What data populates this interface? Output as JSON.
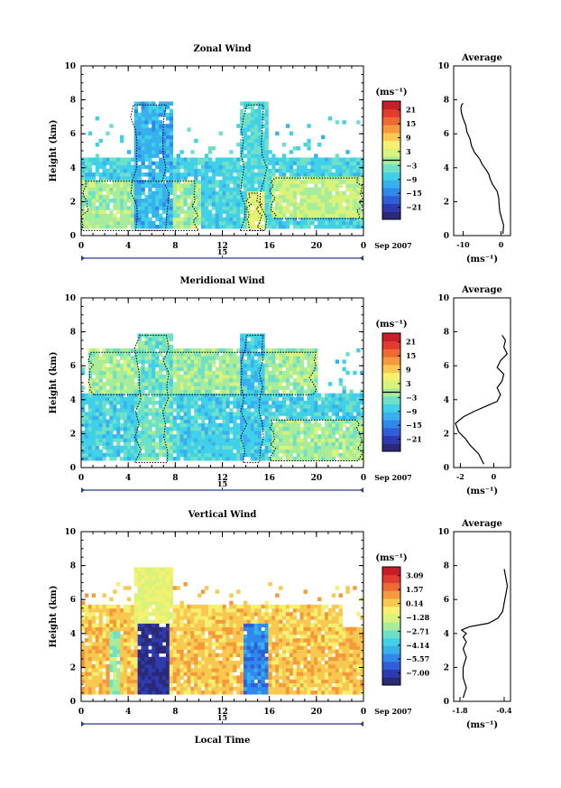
{
  "figure": {
    "colors": {
      "colorbar": [
        "#2a2a78",
        "#2e3bb0",
        "#2f5fd8",
        "#2f88ea",
        "#38b0ee",
        "#40d0e8",
        "#6fe0c8",
        "#a6ec9a",
        "#d8f27a",
        "#f6f070",
        "#f8c850",
        "#f49a3a",
        "#ee6a34",
        "#e23c30",
        "#c81e28"
      ],
      "contour": "#000000",
      "profile_line": "#000000",
      "time_marker": "#2a3a8a"
    },
    "x_axis": {
      "ticks": [
        "0",
        "4",
        "8",
        "12",
        "16",
        "20",
        "0"
      ],
      "day_label": "15",
      "date_label": "Sep 2007",
      "xlabel": "Local Time",
      "xlim_hours": [
        0,
        24
      ]
    }
  },
  "chart_data": [
    {
      "type": "heatmap",
      "title": "Zonal Wind",
      "ylabel": "Height (km)",
      "ylim": [
        0,
        10
      ],
      "yticks": [
        "0",
        "2",
        "4",
        "6",
        "8",
        "10"
      ],
      "units": "(ms⁻¹)",
      "colorbar_ticks": [
        "21",
        "15",
        "9",
        "3",
        "−3",
        "−9",
        "−15",
        "−21"
      ],
      "colorbar_range": [
        -24,
        24
      ],
      "contour_levels": [
        -3
      ],
      "features": [
        {
          "t_start": 0,
          "t_end": 24,
          "z_base": 0.4,
          "z_top": 4.6,
          "value": -6
        },
        {
          "t_start": 0,
          "t_end": 10,
          "z_base": 0.3,
          "z_top": 3.2,
          "value": 0
        },
        {
          "t_start": 4.2,
          "t_end": 7.5,
          "z_base": 0.3,
          "z_top": 7.7,
          "value": -9
        },
        {
          "t_start": 13.5,
          "t_end": 15.8,
          "z_base": 0.3,
          "z_top": 7.7,
          "value": -5
        },
        {
          "t_start": 14.0,
          "t_end": 15.5,
          "z_base": 0.3,
          "z_top": 2.5,
          "value": 5
        },
        {
          "t_start": 16,
          "t_end": 24,
          "z_base": 1.0,
          "z_top": 3.4,
          "value": 2
        }
      ]
    },
    {
      "type": "line",
      "title": "Average",
      "xlabel": "(ms⁻¹)",
      "xticks": [
        "-10",
        "0"
      ],
      "xlim": [
        -12.5,
        2.5
      ],
      "ylim": [
        0,
        10
      ],
      "yticks": [
        "0",
        "2",
        "4",
        "6",
        "8",
        "10"
      ],
      "x": [
        0.5,
        0.7,
        0.2,
        -0.3,
        -0.5,
        -0.6,
        -1.0,
        -2.2,
        -2.8,
        -3.2,
        -4.0,
        -5.0,
        -5.6,
        -7.0,
        -7.8,
        -8.2,
        -9.0,
        -9.3,
        -10.0,
        -10.4,
        -10.6,
        -10.4,
        -10.0
      ],
      "y": [
        0.1,
        0.6,
        1.0,
        1.4,
        1.8,
        2.2,
        2.6,
        3.0,
        3.3,
        3.6,
        3.9,
        4.2,
        4.5,
        4.9,
        5.3,
        5.7,
        6.1,
        6.5,
        6.9,
        7.2,
        7.5,
        7.7,
        7.8
      ]
    },
    {
      "type": "heatmap",
      "title": "Meridional Wind",
      "ylabel": "Height (km)",
      "ylim": [
        0,
        10
      ],
      "yticks": [
        "0",
        "2",
        "4",
        "6",
        "8",
        "10"
      ],
      "units": "(ms⁻¹)",
      "colorbar_ticks": [
        "21",
        "15",
        "9",
        "3",
        "−3",
        "−9",
        "−15",
        "−21"
      ],
      "colorbar_range": [
        -24,
        24
      ],
      "contour_levels": [
        -3
      ],
      "features": [
        {
          "t_start": 0,
          "t_end": 24,
          "z_base": 0.4,
          "z_top": 4.3,
          "value": -6
        },
        {
          "t_start": 0.5,
          "t_end": 20,
          "z_base": 4.3,
          "z_top": 6.8,
          "value": 0
        },
        {
          "t_start": 4.5,
          "t_end": 7.5,
          "z_base": 0.3,
          "z_top": 7.8,
          "value": -3
        },
        {
          "t_start": 13.5,
          "t_end": 15.5,
          "z_base": 0.3,
          "z_top": 7.8,
          "value": -7
        },
        {
          "t_start": 16,
          "t_end": 24,
          "z_base": 0.4,
          "z_top": 2.8,
          "value": 0
        }
      ]
    },
    {
      "type": "line",
      "title": "Average",
      "xlabel": "(ms⁻¹)",
      "xticks": [
        "-2",
        "0"
      ],
      "xlim": [
        -2.4,
        1.0
      ],
      "ylim": [
        0,
        10
      ],
      "yticks": [
        "0",
        "2",
        "4",
        "6",
        "8",
        "10"
      ],
      "x": [
        -0.6,
        -0.9,
        -1.4,
        -1.7,
        -2.1,
        -2.3,
        -1.8,
        -1.2,
        -0.5,
        0.2,
        0.4,
        0.2,
        0.5,
        0.6,
        0.2,
        0.4,
        0.8,
        0.6,
        0.7,
        0.5
      ],
      "y": [
        0.2,
        0.8,
        1.3,
        1.7,
        2.1,
        2.6,
        3.0,
        3.3,
        3.6,
        3.9,
        4.3,
        4.7,
        5.1,
        5.5,
        5.9,
        6.3,
        6.7,
        7.1,
        7.5,
        7.8
      ]
    },
    {
      "type": "heatmap",
      "title": "Vertical Wind",
      "ylabel": "Height (km)",
      "ylim": [
        0,
        10
      ],
      "yticks": [
        "0",
        "2",
        "4",
        "6",
        "8",
        "10"
      ],
      "units": "(ms⁻¹)",
      "colorbar_ticks": [
        "3.09",
        "1.57",
        "0.14",
        "−1.28",
        "−2.71",
        "−4.14",
        "−5.57",
        "−7.00"
      ],
      "colorbar_range": [
        -7.7,
        3.8
      ],
      "contour_levels": [],
      "features": [
        {
          "t_start": 0,
          "t_end": 24,
          "z_base": 0.3,
          "z_top": 4.3,
          "value": 0.4
        },
        {
          "t_start": 0,
          "t_end": 22,
          "z_base": 4.3,
          "z_top": 5.7,
          "value": 0.2
        },
        {
          "t_start": 4.5,
          "t_end": 7.3,
          "z_base": 0.3,
          "z_top": 4.4,
          "value": -7.0
        },
        {
          "t_start": 4.3,
          "t_end": 7.6,
          "z_base": 4.4,
          "z_top": 7.8,
          "value": -0.8
        },
        {
          "t_start": 13.8,
          "t_end": 15.8,
          "z_base": 0.3,
          "z_top": 4.5,
          "value": -5.0
        },
        {
          "t_start": 2.2,
          "t_end": 3.0,
          "z_base": 0.3,
          "z_top": 4.0,
          "value": -2.0
        }
      ]
    },
    {
      "type": "line",
      "title": "Average",
      "xlabel": "(ms⁻¹)",
      "xticks": [
        "-1.8",
        "-0.4"
      ],
      "xlim": [
        -2.0,
        -0.2
      ],
      "ylim": [
        0,
        10
      ],
      "yticks": [
        "0",
        "2",
        "4",
        "6",
        "8",
        "10"
      ],
      "x": [
        -1.7,
        -1.6,
        -1.7,
        -1.7,
        -1.6,
        -1.7,
        -1.6,
        -1.7,
        -1.6,
        -1.75,
        -1.5,
        -0.9,
        -0.6,
        -0.45,
        -0.4,
        -0.35,
        -0.3,
        -0.35,
        -0.4
      ],
      "y": [
        0.2,
        0.8,
        1.4,
        2.0,
        2.6,
        3.1,
        3.5,
        3.8,
        4.0,
        4.2,
        4.4,
        4.6,
        4.9,
        5.3,
        5.8,
        6.3,
        6.8,
        7.3,
        7.8
      ]
    }
  ]
}
